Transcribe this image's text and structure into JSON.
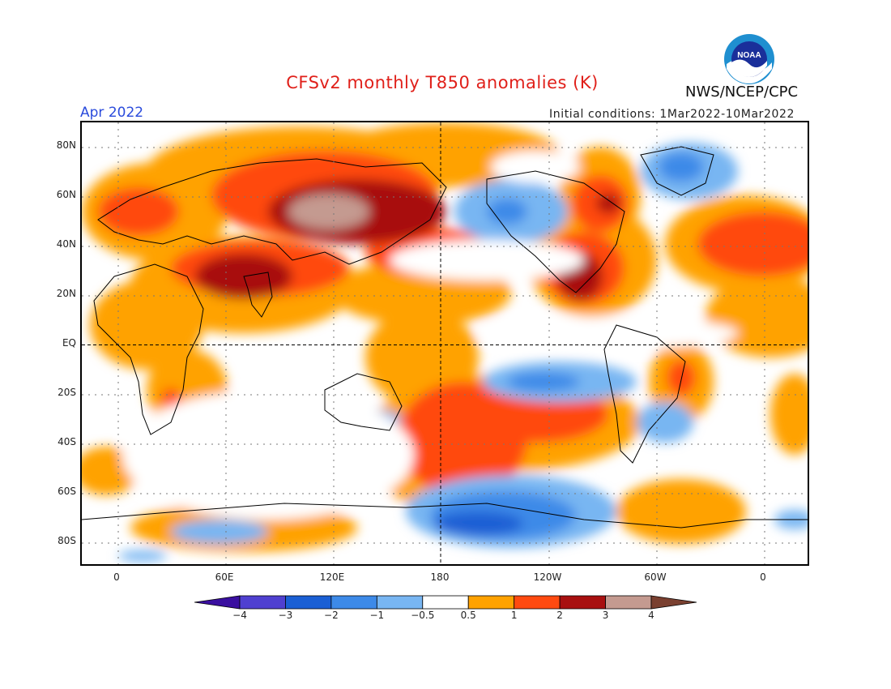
{
  "title": "CFSv2 monthly T850 anomalies (K)",
  "agency": "NWS/NCEP/CPC",
  "logo_text": "NOAA",
  "valid_month": "Apr 2022",
  "initial_conditions": "Initial conditions: 1Mar2022-10Mar2022",
  "latitude_labels": [
    {
      "lat": 80,
      "label": "80N"
    },
    {
      "lat": 60,
      "label": "60N"
    },
    {
      "lat": 40,
      "label": "40N"
    },
    {
      "lat": 20,
      "label": "20N"
    },
    {
      "lat": 0,
      "label": "EQ"
    },
    {
      "lat": -20,
      "label": "20S"
    },
    {
      "lat": -40,
      "label": "40S"
    },
    {
      "lat": -60,
      "label": "60S"
    },
    {
      "lat": -80,
      "label": "80S"
    }
  ],
  "longitude_labels": [
    {
      "lon": 0,
      "label": "0"
    },
    {
      "lon": 60,
      "label": "60E"
    },
    {
      "lon": 120,
      "label": "120E"
    },
    {
      "lon": 180,
      "label": "180"
    },
    {
      "lon": 240,
      "label": "120W"
    },
    {
      "lon": 300,
      "label": "60W"
    },
    {
      "lon": 360,
      "label": "0"
    }
  ],
  "colorbar": {
    "levels": [
      "-4",
      "-3",
      "-2",
      "-1",
      "-0.5",
      "0.5",
      "1",
      "2",
      "3",
      "4"
    ],
    "colors": [
      "#3a0fa0",
      "#4f40d0",
      "#1a5fd4",
      "#3d8ae8",
      "#78b6f2",
      "#ffffff",
      "#ffa200",
      "#ff4a10",
      "#a81010",
      "#c49a90",
      "#7a4030"
    ]
  },
  "colors": {
    "title": "#e0201a",
    "valid_month": "#2a4bdc",
    "coastline": "#000000"
  }
}
